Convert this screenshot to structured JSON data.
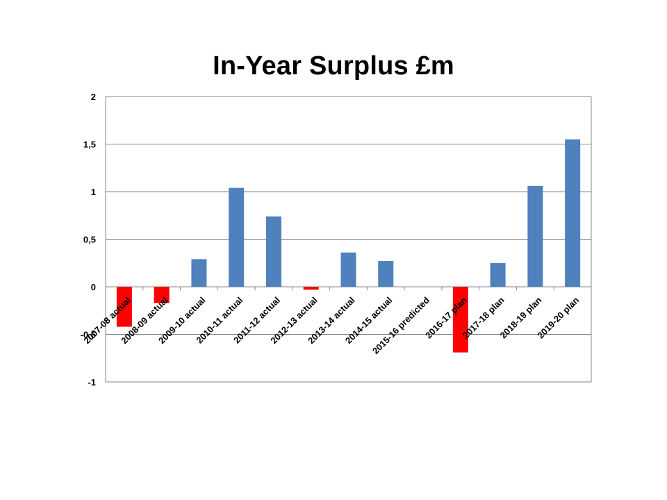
{
  "chart_data": {
    "type": "bar",
    "title": "In-Year Surplus £m",
    "xlabel": "",
    "ylabel": "",
    "ylim": [
      -1,
      2
    ],
    "yticks": [
      2,
      1.5,
      1,
      0.5,
      0,
      -0.5,
      -1
    ],
    "ytick_labels": [
      "2",
      "1,5",
      "1",
      "0,5",
      "0",
      "-0,5",
      "-1"
    ],
    "grid": true,
    "legend": "none",
    "categories": [
      "2007-08 actual",
      "2008-09 actual",
      "2009-10 actual",
      "2010-11 actual",
      "2011-12 actual",
      "2012-13 actual",
      "2013-14 actual",
      "2014-15 actual",
      "2015-16 predicted",
      "2016-17 plan",
      "2017-18 plan",
      "2018-19 plan",
      "2019-20 plan"
    ],
    "values": [
      -0.42,
      -0.17,
      0.29,
      1.04,
      0.74,
      -0.03,
      0.36,
      0.27,
      0,
      -0.69,
      0.25,
      1.06,
      1.55
    ],
    "colors": {
      "positive": "#4f81bd",
      "negative": "#ff0000",
      "grid": "#868686",
      "axis": "#868686"
    }
  }
}
